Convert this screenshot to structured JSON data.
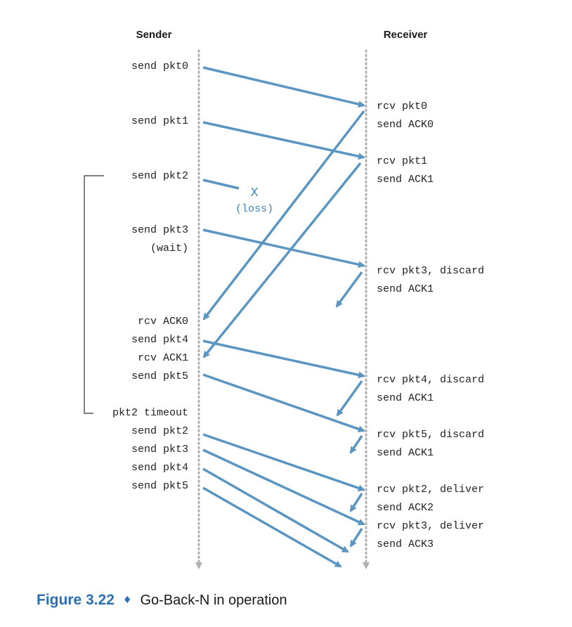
{
  "headers": {
    "sender": "Sender",
    "receiver": "Receiver"
  },
  "sender_labels": [
    "send pkt0",
    "send pkt1",
    "send pkt2",
    "send pkt3",
    "(wait)",
    "rcv ACK0",
    "send pkt4",
    "rcv ACK1",
    "send pkt5",
    "pkt2 timeout",
    "send pkt2",
    "send pkt3",
    "send pkt4",
    "send pkt5"
  ],
  "receiver_labels": [
    "rcv pkt0",
    "send ACK0",
    "rcv pkt1",
    "send ACK1",
    "rcv pkt3, discard",
    "send ACK1",
    "rcv pkt4, discard",
    "send ACK1",
    "rcv pkt5, discard",
    "send ACK1",
    "rcv pkt2, deliver",
    "send ACK2",
    "rcv pkt3, deliver",
    "send ACK3"
  ],
  "loss": {
    "mark": "X",
    "label": "(loss)"
  },
  "caption": {
    "figure": "Figure 3.22",
    "separator": "♦",
    "text": "Go-Back-N in operation"
  },
  "colors": {
    "arrow": "#5b96c3",
    "timeline": "#b0b0b0",
    "accent": "#2a6fb0"
  }
}
